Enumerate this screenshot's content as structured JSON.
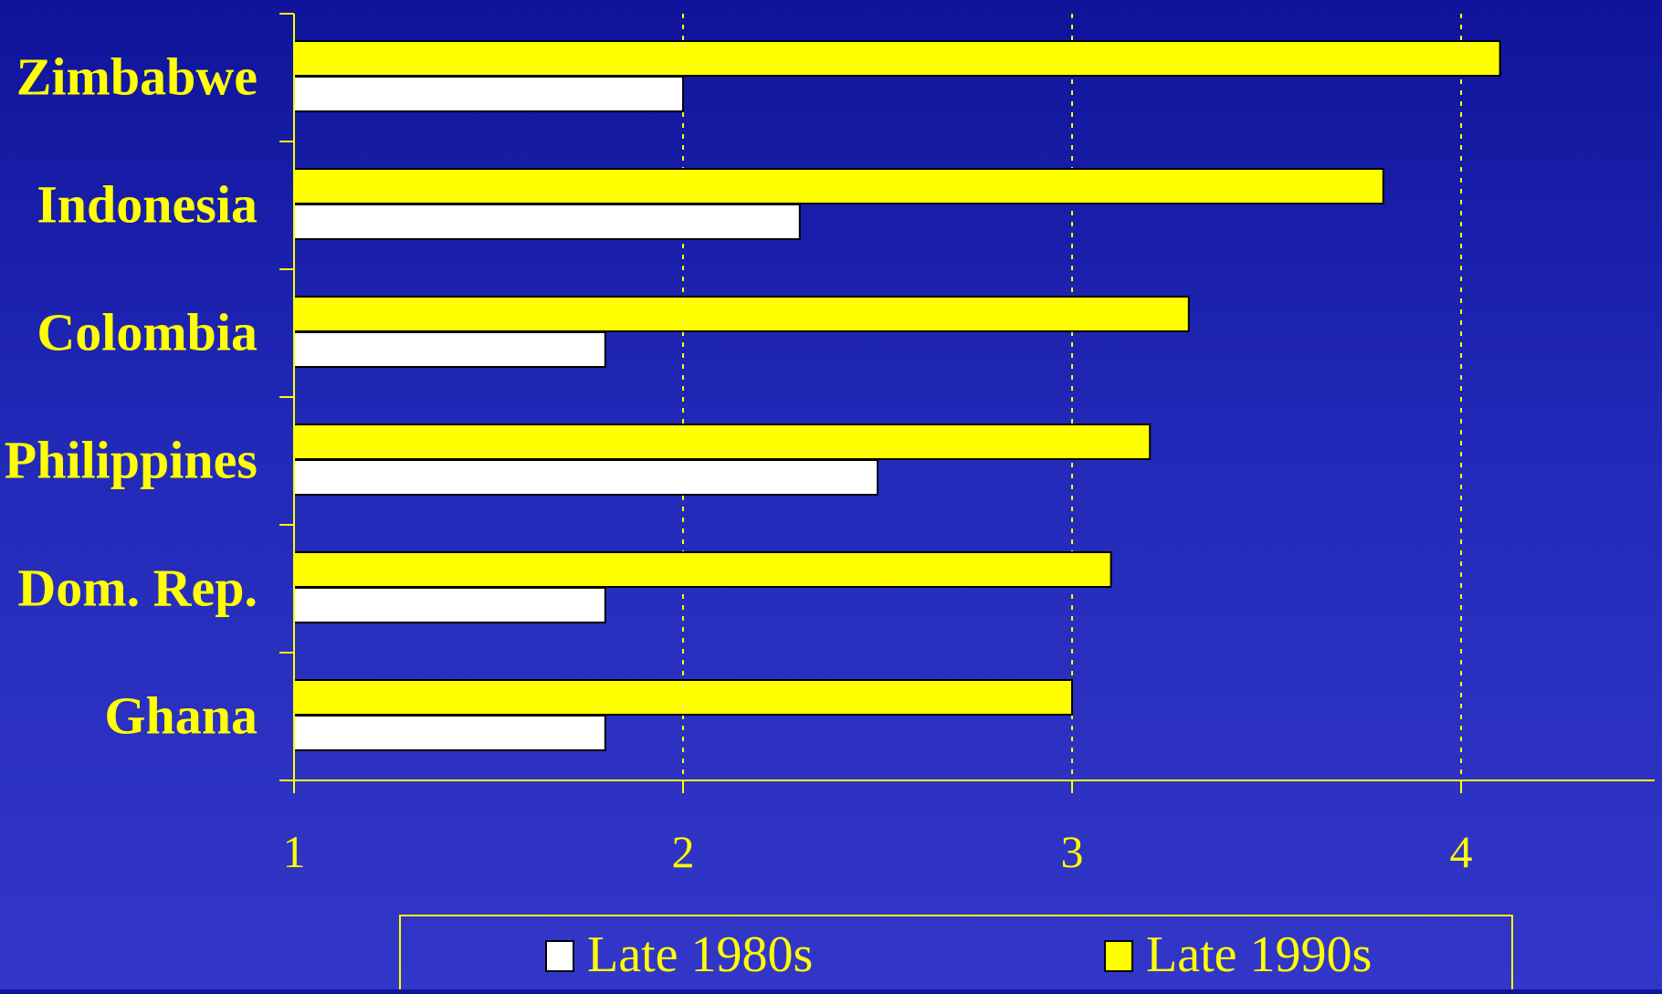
{
  "chart_data": {
    "type": "bar",
    "orientation": "horizontal",
    "categories": [
      "Zimbabwe",
      "Indonesia",
      "Colombia",
      "Philippines",
      "Dom. Rep.",
      "Ghana"
    ],
    "series": [
      {
        "name": "Late 1990s",
        "values": [
          4.1,
          3.8,
          3.3,
          3.2,
          3.1,
          3.0
        ]
      },
      {
        "name": "Late 1980s",
        "values": [
          2.0,
          2.3,
          1.8,
          2.5,
          1.8,
          1.8
        ]
      }
    ],
    "x_ticks": [
      "1",
      "2",
      "3",
      "4"
    ],
    "xlim": [
      1,
      4.5
    ],
    "grid": "vertical dotted",
    "legend_placement": "bottom-center",
    "legend": [
      {
        "name": "Late 1980s",
        "color": "#ffffff"
      },
      {
        "name": "Late 1990s",
        "color": "#ffff00"
      }
    ],
    "colors": {
      "late_1980s": "#ffffff",
      "late_1990s": "#ffff00",
      "text": "#ffff00",
      "axis": "#ffff00",
      "bar_outline": "#000000"
    }
  }
}
